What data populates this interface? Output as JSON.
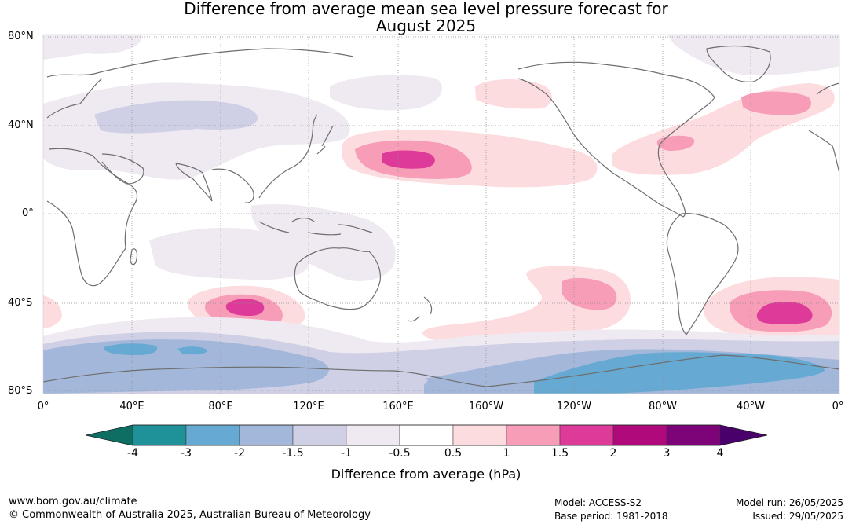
{
  "title_line1": "Difference from average mean sea level pressure forecast for",
  "title_line2": "August 2025",
  "lat_labels": [
    "80°N",
    "40°N",
    "0°",
    "40°S",
    "80°S"
  ],
  "lon_labels": [
    "0°",
    "40°E",
    "80°E",
    "120°E",
    "160°E",
    "160°W",
    "120°W",
    "80°W",
    "40°W",
    "0°"
  ],
  "colorbar": {
    "ticks": [
      "-4",
      "-3",
      "-2",
      "-1.5",
      "-1",
      "-0.5",
      "0.5",
      "1",
      "1.5",
      "2",
      "3",
      "4"
    ],
    "colors": [
      "#0e6e64",
      "#1f9199",
      "#66aad3",
      "#a2b7d9",
      "#cfd0e5",
      "#efe9f1",
      "#ffffff",
      "#fddcdf",
      "#f79db8",
      "#de3a9a",
      "#b0097c",
      "#7c0478",
      "#4a006a"
    ],
    "label": "Difference from average (hPa)"
  },
  "footer": {
    "website": "www.bom.gov.au/climate",
    "copyright": "© Commonwealth of Australia 2025, Australian Bureau of Meteorology",
    "model": "Model: ACCESS-S2",
    "base_period": "Base period: 1981-2018",
    "model_run": "Model run: 26/05/2025",
    "issued": "Issued: 29/05/2025"
  }
}
